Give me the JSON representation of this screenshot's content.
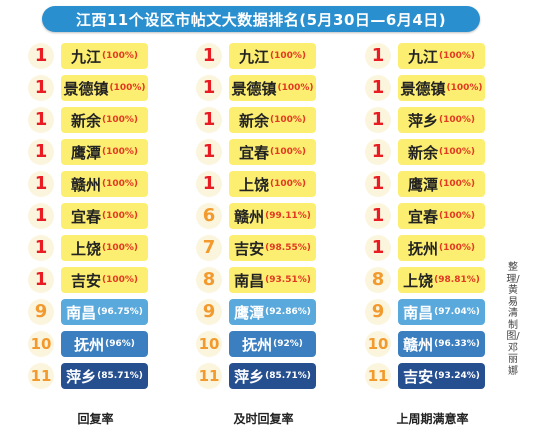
{
  "title": "江西11个设区市帖文大数据排名(5月30日—6月4日)",
  "columns": [
    {
      "label": "回复率",
      "rows": [
        {
          "rank": "1",
          "city": "九江",
          "pct": "(100%)"
        },
        {
          "rank": "1",
          "city": "景德镇",
          "pct": "(100%)"
        },
        {
          "rank": "1",
          "city": "新余",
          "pct": "(100%)"
        },
        {
          "rank": "1",
          "city": "鹰潭",
          "pct": "(100%)"
        },
        {
          "rank": "1",
          "city": "赣州",
          "pct": "(100%)"
        },
        {
          "rank": "1",
          "city": "宜春",
          "pct": "(100%)"
        },
        {
          "rank": "1",
          "city": "上饶",
          "pct": "(100%)"
        },
        {
          "rank": "1",
          "city": "吉安",
          "pct": "(100%)"
        },
        {
          "rank": "9",
          "city": "南昌",
          "pct": "(96.75%)"
        },
        {
          "rank": "10",
          "city": "抚州",
          "pct": "(96%)"
        },
        {
          "rank": "11",
          "city": "萍乡",
          "pct": "(85.71%)"
        }
      ]
    },
    {
      "label": "及时回复率",
      "rows": [
        {
          "rank": "1",
          "city": "九江",
          "pct": "(100%)"
        },
        {
          "rank": "1",
          "city": "景德镇",
          "pct": "(100%)"
        },
        {
          "rank": "1",
          "city": "新余",
          "pct": "(100%)"
        },
        {
          "rank": "1",
          "city": "宜春",
          "pct": "(100%)"
        },
        {
          "rank": "1",
          "city": "上饶",
          "pct": "(100%)"
        },
        {
          "rank": "6",
          "city": "赣州",
          "pct": "(99.11%)"
        },
        {
          "rank": "7",
          "city": "吉安",
          "pct": "(98.55%)"
        },
        {
          "rank": "8",
          "city": "南昌",
          "pct": "(93.51%)"
        },
        {
          "rank": "9",
          "city": "鹰潭",
          "pct": "(92.86%)"
        },
        {
          "rank": "10",
          "city": "抚州",
          "pct": "(92%)"
        },
        {
          "rank": "11",
          "city": "萍乡",
          "pct": "(85.71%)"
        }
      ]
    },
    {
      "label": "上周期满意率",
      "rows": [
        {
          "rank": "1",
          "city": "九江",
          "pct": "(100%)"
        },
        {
          "rank": "1",
          "city": "景德镇",
          "pct": "(100%)"
        },
        {
          "rank": "1",
          "city": "萍乡",
          "pct": "(100%)"
        },
        {
          "rank": "1",
          "city": "新余",
          "pct": "(100%)"
        },
        {
          "rank": "1",
          "city": "鹰潭",
          "pct": "(100%)"
        },
        {
          "rank": "1",
          "city": "宜春",
          "pct": "(100%)"
        },
        {
          "rank": "1",
          "city": "抚州",
          "pct": "(100%)"
        },
        {
          "rank": "8",
          "city": "上饶",
          "pct": "(98.81%)"
        },
        {
          "rank": "9",
          "city": "南昌",
          "pct": "(97.04%)"
        },
        {
          "rank": "10",
          "city": "赣州",
          "pct": "(96.33%)"
        },
        {
          "rank": "11",
          "city": "吉安",
          "pct": "(93.24%)"
        }
      ]
    }
  ],
  "credit": "整理/黄易清 制图/邓丽娜",
  "colors": {
    "title_bg": "#2a8fcf",
    "yellow": "#fcee71",
    "light_blue": "#5aa9dc",
    "mid_blue": "#3c7fc0",
    "navy": "#264f90",
    "rank_red": "#e81c22",
    "rank_orange": "#f29a2e"
  }
}
